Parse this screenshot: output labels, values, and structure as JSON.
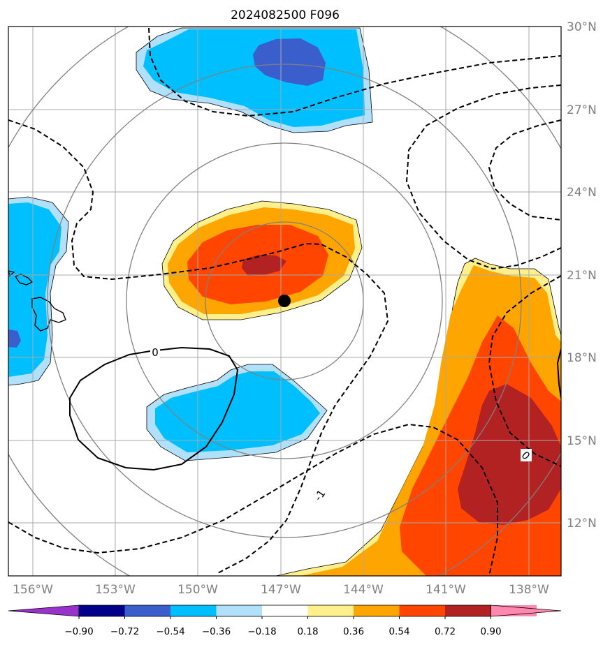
{
  "title": "2024082500 F096",
  "map": {
    "latitude_labels": [
      "30°N",
      "27°N",
      "24°N",
      "21°N",
      "18°N",
      "15°N",
      "12°N"
    ],
    "longitude_labels": [
      "156°W",
      "153°W",
      "150°W",
      "147°W",
      "144°W",
      "141°W",
      "138°W"
    ],
    "contour_labels": [
      "0",
      "-1",
      "0"
    ],
    "storm_marker": "black dot",
    "colors": {
      "light_blue": "#b0e0fa",
      "cyan": "#00bfff",
      "royal_blue": "#3a5fcd",
      "yellow": "#fff08c",
      "orange": "#ffa500",
      "orange_red": "#ff4500",
      "firebrick": "#b22222",
      "grid": "#a9a9a9",
      "range_rings": "#808080"
    }
  },
  "colorbar": {
    "ticks": [
      "−0.90",
      "−0.72",
      "−0.54",
      "−0.36",
      "−0.18",
      "0.18",
      "0.36",
      "0.54",
      "0.72",
      "0.90"
    ],
    "colors": [
      "#9932cc",
      "#00008b",
      "#3a5fcd",
      "#00bfff",
      "#b0e0fa",
      "#ffffff",
      "#fff08c",
      "#ffa500",
      "#ff4500",
      "#b22222",
      "#ff88b0",
      "#ff88b0"
    ]
  }
}
